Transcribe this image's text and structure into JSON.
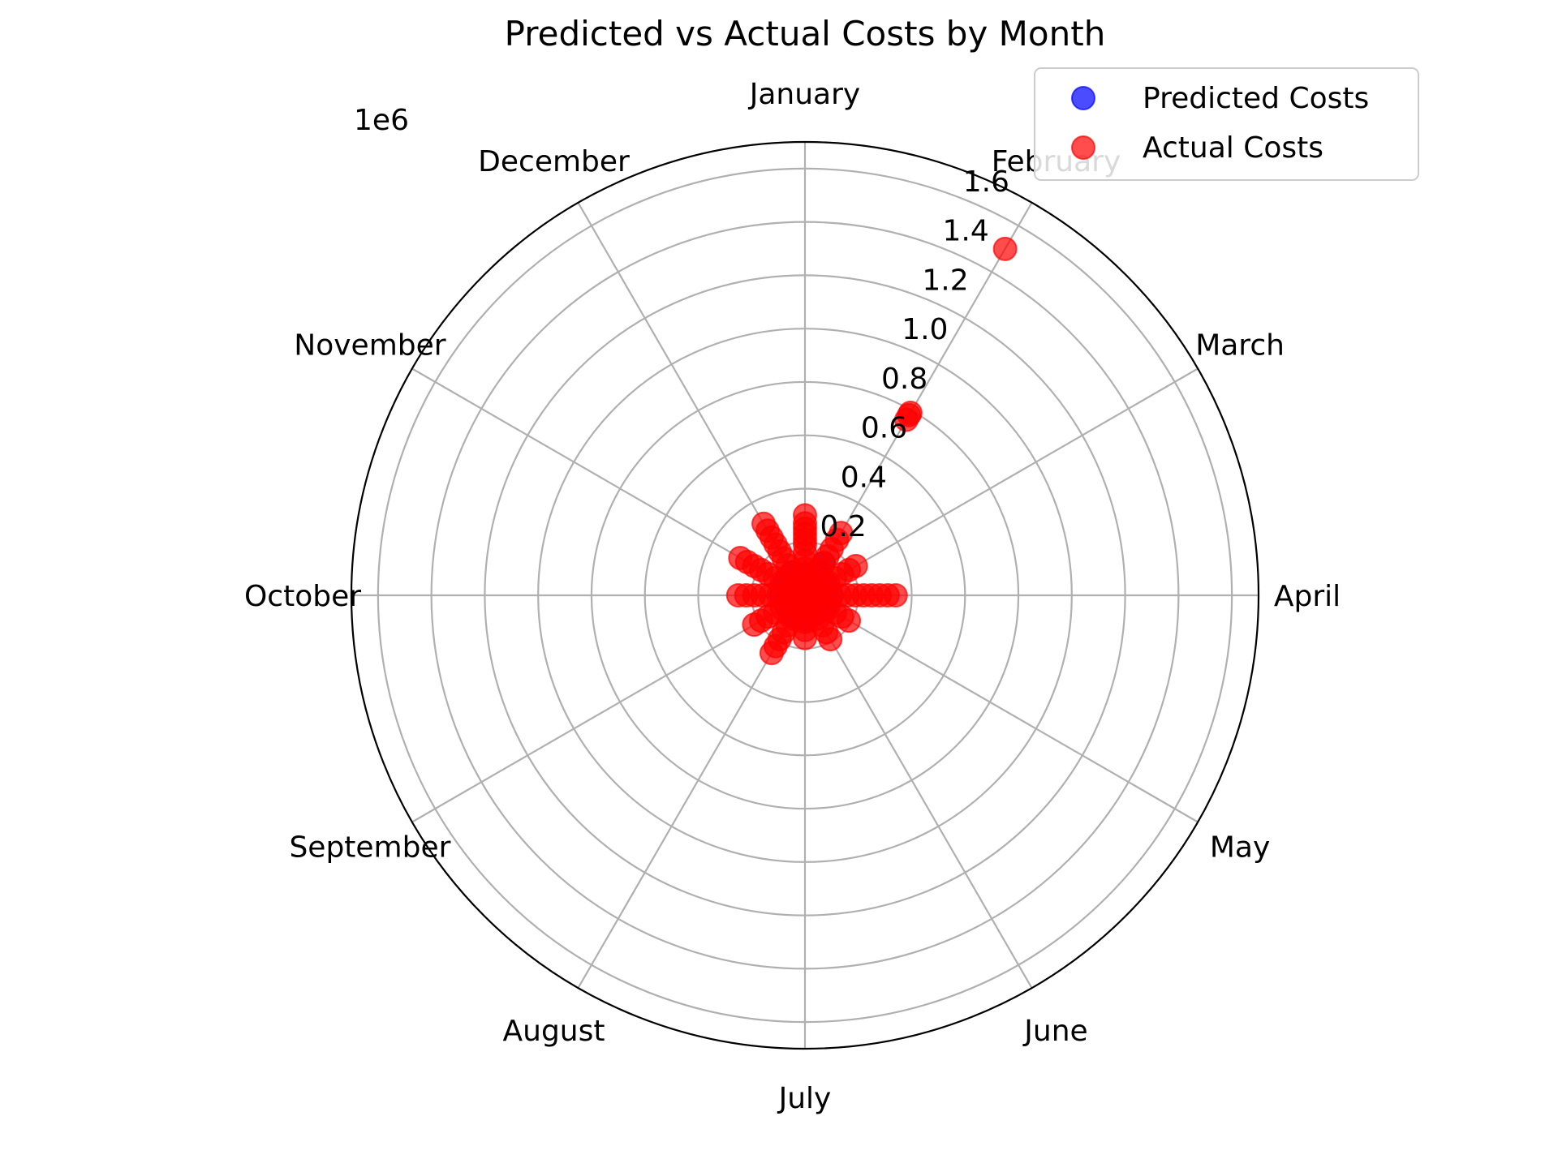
{
  "chart_data": {
    "type": "scatter",
    "projection": "polar",
    "title": "Predicted vs Actual Costs by Month",
    "theta_labels": [
      "January",
      "February",
      "March",
      "April",
      "May",
      "June",
      "July",
      "August",
      "September",
      "October",
      "November",
      "December"
    ],
    "theta_direction": "clockwise",
    "theta_zero": "top",
    "r_offset_label": "1e6",
    "r_ticks": [
      0.2,
      0.4,
      0.6,
      0.8,
      1.0,
      1.2,
      1.4,
      1.6
    ],
    "r_tick_labels": [
      "0.2",
      "0.4",
      "0.6",
      "0.8",
      "1.0",
      "1.2",
      "1.4",
      "1.6"
    ],
    "r_lim": [
      0,
      1.7
    ],
    "grid": true,
    "legend_position": "top-right",
    "series": [
      {
        "name": "Predicted Costs",
        "color": "#0000ff",
        "points": [
          {
            "month": "January",
            "value": 0.05
          },
          {
            "month": "January",
            "value": 0.08
          },
          {
            "month": "February",
            "value": 0.06
          },
          {
            "month": "February",
            "value": 0.1
          },
          {
            "month": "February",
            "value": 0.14
          },
          {
            "month": "March",
            "value": 0.06
          },
          {
            "month": "March",
            "value": 0.09
          },
          {
            "month": "April",
            "value": 0.06
          },
          {
            "month": "April",
            "value": 0.1
          },
          {
            "month": "May",
            "value": 0.06
          },
          {
            "month": "May",
            "value": 0.09
          },
          {
            "month": "June",
            "value": 0.05
          },
          {
            "month": "June",
            "value": 0.08
          },
          {
            "month": "July",
            "value": 0.06
          },
          {
            "month": "July",
            "value": 0.09
          },
          {
            "month": "August",
            "value": 0.06
          },
          {
            "month": "August",
            "value": 0.09
          },
          {
            "month": "September",
            "value": 0.05
          },
          {
            "month": "September",
            "value": 0.08
          },
          {
            "month": "October",
            "value": 0.06
          },
          {
            "month": "October",
            "value": 0.09
          },
          {
            "month": "November",
            "value": 0.05
          },
          {
            "month": "November",
            "value": 0.09
          },
          {
            "month": "December",
            "value": 0.06
          },
          {
            "month": "December",
            "value": 0.1
          }
        ]
      },
      {
        "name": "Actual Costs",
        "color": "#ff0000",
        "points": [
          {
            "month": "January",
            "value": 0.04
          },
          {
            "month": "January",
            "value": 0.07
          },
          {
            "month": "January",
            "value": 0.1
          },
          {
            "month": "January",
            "value": 0.13
          },
          {
            "month": "January",
            "value": 0.16
          },
          {
            "month": "January",
            "value": 0.19
          },
          {
            "month": "January",
            "value": 0.21
          },
          {
            "month": "January",
            "value": 0.23
          },
          {
            "month": "January",
            "value": 0.25
          },
          {
            "month": "January",
            "value": 0.27
          },
          {
            "month": "January",
            "value": 0.3
          },
          {
            "month": "February",
            "value": 0.05
          },
          {
            "month": "February",
            "value": 0.08
          },
          {
            "month": "February",
            "value": 0.11
          },
          {
            "month": "February",
            "value": 0.14
          },
          {
            "month": "February",
            "value": 0.17
          },
          {
            "month": "February",
            "value": 0.2
          },
          {
            "month": "February",
            "value": 0.24
          },
          {
            "month": "February",
            "value": 0.27
          },
          {
            "month": "February",
            "value": 0.76
          },
          {
            "month": "February",
            "value": 0.78
          },
          {
            "month": "February",
            "value": 0.79
          },
          {
            "month": "February",
            "value": 1.5
          },
          {
            "month": "March",
            "value": 0.04
          },
          {
            "month": "March",
            "value": 0.07
          },
          {
            "month": "March",
            "value": 0.1
          },
          {
            "month": "March",
            "value": 0.13
          },
          {
            "month": "March",
            "value": 0.16
          },
          {
            "month": "March",
            "value": 0.19
          },
          {
            "month": "March",
            "value": 0.22
          },
          {
            "month": "April",
            "value": 0.04
          },
          {
            "month": "April",
            "value": 0.07
          },
          {
            "month": "April",
            "value": 0.1
          },
          {
            "month": "April",
            "value": 0.13
          },
          {
            "month": "April",
            "value": 0.16
          },
          {
            "month": "April",
            "value": 0.19
          },
          {
            "month": "April",
            "value": 0.22
          },
          {
            "month": "April",
            "value": 0.25
          },
          {
            "month": "April",
            "value": 0.28
          },
          {
            "month": "April",
            "value": 0.31
          },
          {
            "month": "April",
            "value": 0.34
          },
          {
            "month": "May",
            "value": 0.04
          },
          {
            "month": "May",
            "value": 0.07
          },
          {
            "month": "May",
            "value": 0.1
          },
          {
            "month": "May",
            "value": 0.13
          },
          {
            "month": "May",
            "value": 0.16
          },
          {
            "month": "May",
            "value": 0.19
          },
          {
            "month": "June",
            "value": 0.04
          },
          {
            "month": "June",
            "value": 0.07
          },
          {
            "month": "June",
            "value": 0.1
          },
          {
            "month": "June",
            "value": 0.13
          },
          {
            "month": "June",
            "value": 0.16
          },
          {
            "month": "June",
            "value": 0.19
          },
          {
            "month": "July",
            "value": 0.04
          },
          {
            "month": "July",
            "value": 0.07
          },
          {
            "month": "July",
            "value": 0.1
          },
          {
            "month": "July",
            "value": 0.13
          },
          {
            "month": "July",
            "value": 0.16
          },
          {
            "month": "August",
            "value": 0.04
          },
          {
            "month": "August",
            "value": 0.07
          },
          {
            "month": "August",
            "value": 0.1
          },
          {
            "month": "August",
            "value": 0.13
          },
          {
            "month": "August",
            "value": 0.16
          },
          {
            "month": "August",
            "value": 0.19
          },
          {
            "month": "August",
            "value": 0.22
          },
          {
            "month": "August",
            "value": 0.25
          },
          {
            "month": "September",
            "value": 0.04
          },
          {
            "month": "September",
            "value": 0.07
          },
          {
            "month": "September",
            "value": 0.1
          },
          {
            "month": "September",
            "value": 0.13
          },
          {
            "month": "September",
            "value": 0.16
          },
          {
            "month": "September",
            "value": 0.19
          },
          {
            "month": "September",
            "value": 0.22
          },
          {
            "month": "October",
            "value": 0.04
          },
          {
            "month": "October",
            "value": 0.07
          },
          {
            "month": "October",
            "value": 0.1
          },
          {
            "month": "October",
            "value": 0.13
          },
          {
            "month": "October",
            "value": 0.16
          },
          {
            "month": "October",
            "value": 0.19
          },
          {
            "month": "October",
            "value": 0.22
          },
          {
            "month": "October",
            "value": 0.25
          },
          {
            "month": "November",
            "value": 0.04
          },
          {
            "month": "November",
            "value": 0.07
          },
          {
            "month": "November",
            "value": 0.1
          },
          {
            "month": "November",
            "value": 0.13
          },
          {
            "month": "November",
            "value": 0.16
          },
          {
            "month": "November",
            "value": 0.19
          },
          {
            "month": "November",
            "value": 0.22
          },
          {
            "month": "November",
            "value": 0.25
          },
          {
            "month": "November",
            "value": 0.28
          },
          {
            "month": "December",
            "value": 0.04
          },
          {
            "month": "December",
            "value": 0.07
          },
          {
            "month": "December",
            "value": 0.1
          },
          {
            "month": "December",
            "value": 0.13
          },
          {
            "month": "December",
            "value": 0.16
          },
          {
            "month": "December",
            "value": 0.19
          },
          {
            "month": "December",
            "value": 0.22
          },
          {
            "month": "December",
            "value": 0.25
          },
          {
            "month": "December",
            "value": 0.28
          },
          {
            "month": "December",
            "value": 0.31
          }
        ]
      }
    ]
  }
}
